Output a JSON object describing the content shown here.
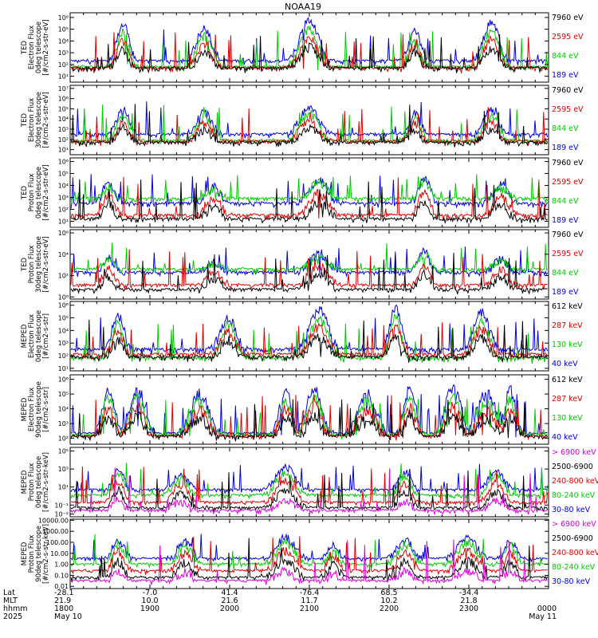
{
  "title": "NOAA19",
  "row_labels": [
    "Lat",
    "MLT",
    "hhmm",
    "2025"
  ],
  "x_ticks": [
    {
      "lat": "-28.1",
      "mlt": "21.9",
      "time": "1800",
      "date": "May 10"
    },
    {
      "lat": "-7.0",
      "mlt": "10.0",
      "time": "1900",
      "date": ""
    },
    {
      "lat": "41.4",
      "mlt": "21.6",
      "time": "2000",
      "date": ""
    },
    {
      "lat": "-76.4",
      "mlt": "11.7",
      "time": "2100",
      "date": ""
    },
    {
      "lat": "68.5",
      "mlt": "10.2",
      "time": "2200",
      "date": ""
    },
    {
      "lat": "-34.4",
      "mlt": "21.8",
      "time": "2300",
      "date": ""
    },
    {
      "lat": "",
      "mlt": "",
      "time": "0000",
      "date": "May 11"
    }
  ],
  "chart_data": [
    {
      "type": "line",
      "scale": "log",
      "ylabel": [
        "TED",
        "Electron Flux",
        "0deg telescope",
        "[#/cm2-s-str-eV]"
      ],
      "y_ticks": [
        "10¹",
        "10²",
        "10³",
        "10⁴",
        "10⁵",
        "10⁶"
      ],
      "y_tick_exp": [
        1,
        2,
        3,
        4,
        5,
        6
      ],
      "ylim_exp": [
        0.5,
        6.4
      ],
      "legend": [
        {
          "label": "7960 eV",
          "color": "#000000"
        },
        {
          "label": "2595 eV",
          "color": "#e00000"
        },
        {
          "label": "844 eV",
          "color": "#00cc00"
        },
        {
          "label": "189 eV",
          "color": "#0000e0"
        }
      ],
      "series_draw_order": [
        "189 eV",
        "844 eV",
        "2595 eV",
        "7960 eV"
      ],
      "base_exp": [
        2.0,
        1.5,
        1.4,
        1.4
      ],
      "peaks_x": [
        0.11,
        0.28,
        0.5,
        0.72,
        0.88
      ],
      "peaks_exp": [
        5.5,
        5.0,
        5.8,
        4.8,
        5.6
      ]
    },
    {
      "type": "line",
      "scale": "log",
      "ylabel": [
        "TED",
        "Electron Flux",
        "30deg telescope",
        "[#/cm2-s-str-eV]"
      ],
      "y_ticks": [
        "10¹",
        "10²",
        "10³",
        "10⁴",
        "10⁵",
        "10⁶",
        "10⁷"
      ],
      "y_tick_exp": [
        1,
        2,
        3,
        4,
        5,
        6,
        7
      ],
      "ylim_exp": [
        0.5,
        7.3
      ],
      "legend": [
        {
          "label": "7960 eV",
          "color": "#000000"
        },
        {
          "label": "2595 eV",
          "color": "#e00000"
        },
        {
          "label": "844 eV",
          "color": "#00cc00"
        },
        {
          "label": "189 eV",
          "color": "#0000e0"
        }
      ],
      "series_draw_order": [
        "189 eV",
        "844 eV",
        "2595 eV",
        "7960 eV"
      ],
      "base_exp": [
        2.2,
        1.6,
        1.5,
        1.4
      ],
      "peaks_x": [
        0.11,
        0.28,
        0.5,
        0.72,
        0.88
      ],
      "peaks_exp": [
        5.0,
        4.6,
        5.2,
        4.5,
        4.8
      ]
    },
    {
      "type": "line",
      "scale": "log",
      "ylabel": [
        "TED",
        "Proton Flux",
        "0deg telescope",
        "[#/cm2-s-str-eV]"
      ],
      "y_ticks": [
        "10¹",
        "10²",
        "10³",
        "10⁴",
        "10⁵",
        "10⁶"
      ],
      "y_tick_exp": [
        1,
        2,
        3,
        4,
        5,
        6
      ],
      "ylim_exp": [
        0.5,
        6.3
      ],
      "legend": [
        {
          "label": "7960 eV",
          "color": "#000000"
        },
        {
          "label": "2595 eV",
          "color": "#e00000"
        },
        {
          "label": "844 eV",
          "color": "#00cc00"
        },
        {
          "label": "189 eV",
          "color": "#0000e0"
        }
      ],
      "series_draw_order": [
        "189 eV",
        "844 eV",
        "2595 eV",
        "7960 eV"
      ],
      "base_exp": [
        2.2,
        2.6,
        1.2,
        0.9
      ],
      "peaks_x": [
        0.08,
        0.3,
        0.52,
        0.74,
        0.9
      ],
      "peaks_exp": [
        4.2,
        3.8,
        4.5,
        4.6,
        4.0
      ]
    },
    {
      "type": "line",
      "scale": "log",
      "ylabel": [
        "TED",
        "Proton Flux",
        "30deg telescope",
        "[#/cm2-s-str-eV]"
      ],
      "y_ticks": [
        "10⁰",
        "10²",
        "10⁴",
        "10⁶"
      ],
      "y_tick_exp": [
        0,
        2,
        4,
        6
      ],
      "ylim_exp": [
        -0.2,
        6.3
      ],
      "legend": [
        {
          "label": "7960 eV",
          "color": "#000000"
        },
        {
          "label": "2595 eV",
          "color": "#e00000"
        },
        {
          "label": "844 eV",
          "color": "#00cc00"
        },
        {
          "label": "189 eV",
          "color": "#0000e0"
        }
      ],
      "series_draw_order": [
        "189 eV",
        "844 eV",
        "2595 eV",
        "7960 eV"
      ],
      "base_exp": [
        2.0,
        2.3,
        0.8,
        0.4
      ],
      "peaks_x": [
        0.08,
        0.3,
        0.52,
        0.74,
        0.9
      ],
      "peaks_exp": [
        3.6,
        3.2,
        4.0,
        4.3,
        3.5
      ]
    },
    {
      "type": "line",
      "scale": "log",
      "ylabel": [
        "MEPED",
        "Electron Flux",
        "0deg telescope",
        "[#/cm2-s-str]"
      ],
      "y_ticks": [
        "10¹",
        "10²",
        "10³",
        "10⁴",
        "10⁵",
        "10⁶"
      ],
      "y_tick_exp": [
        1,
        2,
        3,
        4,
        5,
        6
      ],
      "ylim_exp": [
        0.8,
        6.3
      ],
      "legend": [
        {
          "label": "612 keV",
          "color": "#000000"
        },
        {
          "label": "287 keV",
          "color": "#e00000"
        },
        {
          "label": "130 keV",
          "color": "#00cc00"
        },
        {
          "label": "40 keV",
          "color": "#0000e0"
        }
      ],
      "series_draw_order": [
        "40 keV",
        "130 keV",
        "287 keV",
        "612 keV"
      ],
      "base_exp": [
        2.2,
        1.5,
        1.8,
        1.6
      ],
      "peaks_x": [
        0.1,
        0.33,
        0.52,
        0.68,
        0.86
      ],
      "peaks_exp": [
        5.2,
        5.0,
        5.6,
        5.7,
        5.4
      ]
    },
    {
      "type": "line",
      "scale": "log",
      "ylabel": [
        "MEPED",
        "Electron Flux",
        "90deg telescope",
        "[#/cm2-s-str]"
      ],
      "y_ticks": [
        "10²",
        "10³",
        "10⁴",
        "10⁵",
        "10⁶"
      ],
      "y_tick_exp": [
        2,
        3,
        4,
        5,
        6
      ],
      "ylim_exp": [
        1.6,
        6.3
      ],
      "legend": [
        {
          "label": "612 keV",
          "color": "#000000"
        },
        {
          "label": "287 keV",
          "color": "#e00000"
        },
        {
          "label": "130 keV",
          "color": "#00cc00"
        },
        {
          "label": "40 keV",
          "color": "#0000e0"
        }
      ],
      "series_draw_order": [
        "40 keV",
        "130 keV",
        "287 keV",
        "612 keV"
      ],
      "base_exp": [
        2.0,
        1.9,
        1.8,
        1.8
      ],
      "peaks_x": [
        0.08,
        0.14,
        0.27,
        0.45,
        0.51,
        0.62,
        0.71,
        0.8,
        0.87,
        0.92
      ],
      "peaks_exp": [
        5.3,
        5.4,
        5.0,
        5.2,
        5.4,
        5.0,
        5.3,
        5.4,
        5.0,
        5.2
      ]
    },
    {
      "type": "line",
      "scale": "log",
      "ylabel": [
        "MEPED",
        "Proton Flux",
        "0deg telescope",
        "[#/cm2-s-str-keV]"
      ],
      "y_ticks": [
        "10⁻²",
        "10⁻¹",
        "10¹",
        "10³",
        "10⁵"
      ],
      "y_tick_exp": [
        -2,
        -1,
        1,
        3,
        5
      ],
      "ylim_exp": [
        -2.3,
        5.4
      ],
      "legend": [
        {
          "label": "> 6900 keV",
          "color": "#e000e0"
        },
        {
          "label": "2500-6900",
          "color": "#000000"
        },
        {
          "label": "240-800 keV",
          "color": "#e00000"
        },
        {
          "label": "80-240 keV",
          "color": "#00cc00"
        },
        {
          "label": "30-80 keV",
          "color": "#0000e0"
        }
      ],
      "series_draw_order": [
        "30-80 keV",
        "80-240 keV",
        "240-800 keV",
        "2500-6900",
        "> 6900 keV"
      ],
      "base_exp": [
        0.4,
        -0.2,
        -1.0,
        -1.6,
        -1.9
      ],
      "peaks_x": [
        0.1,
        0.23,
        0.45,
        0.7,
        0.89
      ],
      "peaks_exp": [
        3.0,
        2.4,
        3.2,
        2.6,
        2.8
      ]
    },
    {
      "type": "line",
      "scale": "log",
      "ylabel": [
        "MEPED",
        "Proton Flux",
        "90deg telescope",
        "[#/cm2-s-str-keV]"
      ],
      "y_ticks": [
        "0.01",
        "0.10",
        "1.00",
        "10.00",
        "100.00",
        "1000.00",
        "10000.00"
      ],
      "y_tick_exp": [
        -2,
        -1,
        0,
        1,
        2,
        3,
        4
      ],
      "ylim_exp": [
        -2.2,
        4.1
      ],
      "legend": [
        {
          "label": "> 6900 keV",
          "color": "#e000e0"
        },
        {
          "label": "2500-6900",
          "color": "#000000"
        },
        {
          "label": "240-800 keV",
          "color": "#e00000"
        },
        {
          "label": "80-240 keV",
          "color": "#00cc00"
        },
        {
          "label": "30-80 keV",
          "color": "#0000e0"
        }
      ],
      "series_draw_order": [
        "30-80 keV",
        "80-240 keV",
        "240-800 keV",
        "2500-6900",
        "> 6900 keV"
      ],
      "base_exp": [
        0.2,
        -0.3,
        -0.9,
        -1.5,
        -1.8
      ],
      "peaks_x": [
        0.1,
        0.24,
        0.45,
        0.55,
        0.7,
        0.83,
        0.92
      ],
      "peaks_exp": [
        2.3,
        2.0,
        2.4,
        1.6,
        2.2,
        2.5,
        2.1
      ]
    }
  ]
}
